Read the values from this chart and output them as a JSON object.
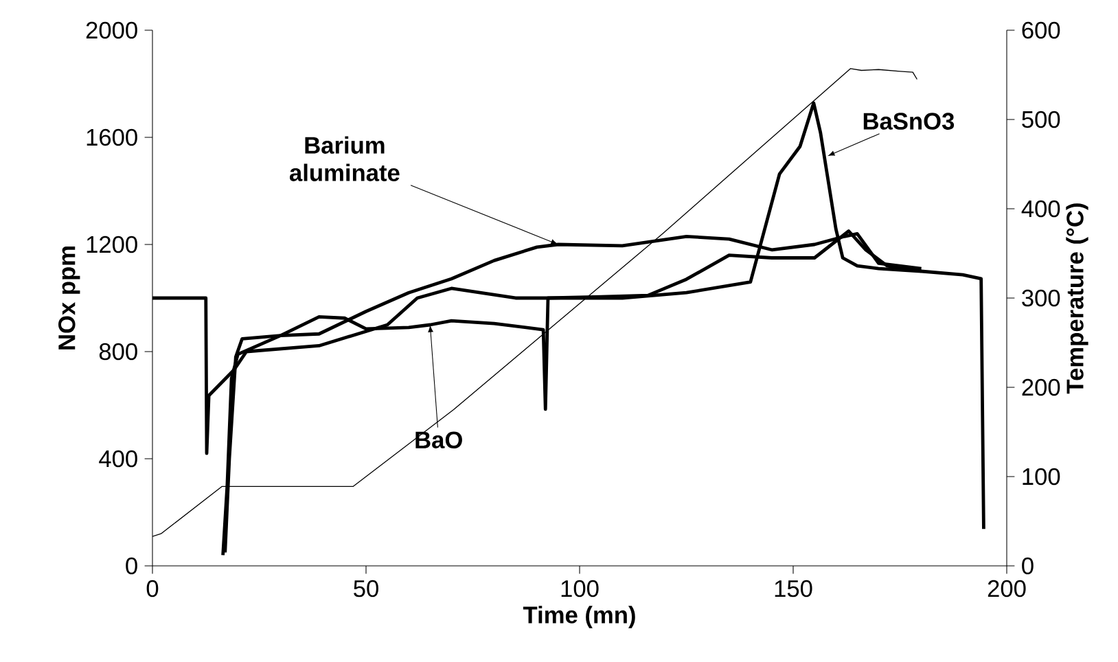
{
  "chart_data": {
    "type": "line",
    "xlabel": "Time (mn)",
    "ylabel": "NOx ppm",
    "y2label": "Temperature (°C)",
    "xlim": [
      0,
      200
    ],
    "xticks": [
      0,
      50,
      100,
      150,
      200
    ],
    "ylim": [
      0,
      2000
    ],
    "yticks": [
      0,
      400,
      800,
      1200,
      1600,
      2000
    ],
    "y2lim": [
      0,
      600
    ],
    "y2ticks": [
      0,
      100,
      200,
      300,
      400,
      500,
      600
    ],
    "marker": "none",
    "line_style": "solid",
    "annotations": [
      {
        "text": "Barium aluminate",
        "x": 95,
        "y": 1200
      },
      {
        "text": "BaSnO3",
        "x": 158,
        "y": 1530
      },
      {
        "text": "BaO",
        "x": 65,
        "y": 900
      }
    ],
    "series": [
      {
        "color": "#000000",
        "x": [
          17,
          18,
          19.5,
          21,
          30,
          39,
          50,
          60,
          70,
          80,
          90,
          95,
          110,
          125,
          135,
          145,
          155,
          162,
          165,
          170,
          180
        ],
        "values": [
          50,
          400,
          780,
          848,
          860,
          866,
          950,
          1020,
          1072,
          1140,
          1190,
          1200,
          1195,
          1230,
          1220,
          1180,
          1200,
          1230,
          1240,
          1130,
          1110
        ]
      },
      {
        "color": "#000000",
        "x": [
          0,
          12.5,
          12.7,
          13.2,
          19,
          22,
          39,
          55,
          62,
          70,
          85,
          110,
          125,
          140,
          146.8,
          151.6,
          154.8,
          156.4,
          160,
          161.6,
          165,
          170,
          180,
          189.7,
          194,
          194.6
        ],
        "values": [
          1000,
          1000,
          420,
          636,
          730,
          800,
          822,
          900,
          1000,
          1036,
          1000,
          1000,
          1020,
          1060,
          1463,
          1566,
          1728,
          1617,
          1258,
          1150,
          1120,
          1110,
          1100,
          1087,
          1072,
          138
        ]
      },
      {
        "color": "#000000",
        "x": [
          16.5,
          17.5,
          18.5,
          20,
          30,
          39,
          45,
          50,
          60,
          65,
          70,
          80,
          91.5,
          92,
          92.6,
          105,
          116,
          125,
          135,
          145,
          155,
          163,
          167,
          172,
          180
        ],
        "values": [
          40,
          300,
          700,
          790,
          860,
          930,
          925,
          885,
          890,
          900,
          915,
          905,
          882,
          585,
          1000,
          1005,
          1010,
          1070,
          1160,
          1150,
          1150,
          1250,
          1180,
          1120,
          1100
        ]
      },
      {
        "color": "#000000",
        "axis": "y2",
        "x": [
          0,
          2,
          16.3,
          47,
          70.5,
          119.4,
          163.4,
          166,
          170,
          175,
          178,
          179
        ],
        "values": [
          33,
          36,
          89,
          89,
          175,
          372,
          557,
          555,
          556,
          554,
          553,
          545
        ]
      }
    ]
  }
}
